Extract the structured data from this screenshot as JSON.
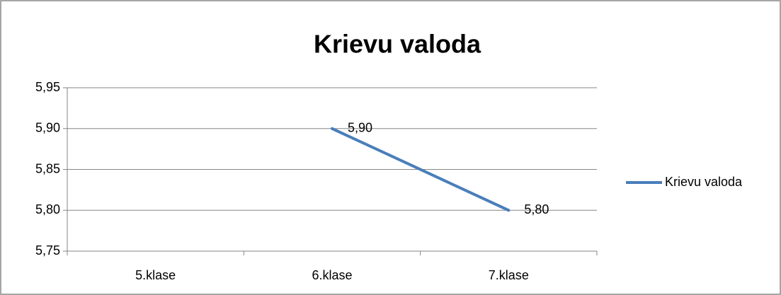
{
  "chart_data": {
    "type": "line",
    "title": "Krievu valoda",
    "categories": [
      "5.klase",
      "6.klase",
      "7.klase"
    ],
    "series": [
      {
        "name": "Krievu valoda",
        "color": "#4a7ebb",
        "values": [
          null,
          5.9,
          5.8
        ],
        "value_labels": [
          null,
          "5,90",
          "5,80"
        ]
      }
    ],
    "ylim": [
      5.75,
      5.95
    ],
    "yticks": [
      {
        "value": 5.75,
        "label": "5,75"
      },
      {
        "value": 5.8,
        "label": "5,80"
      },
      {
        "value": 5.85,
        "label": "5,85"
      },
      {
        "value": 5.9,
        "label": "5,90"
      },
      {
        "value": 5.95,
        "label": "5,95"
      }
    ],
    "grid": true,
    "legend": "right"
  }
}
